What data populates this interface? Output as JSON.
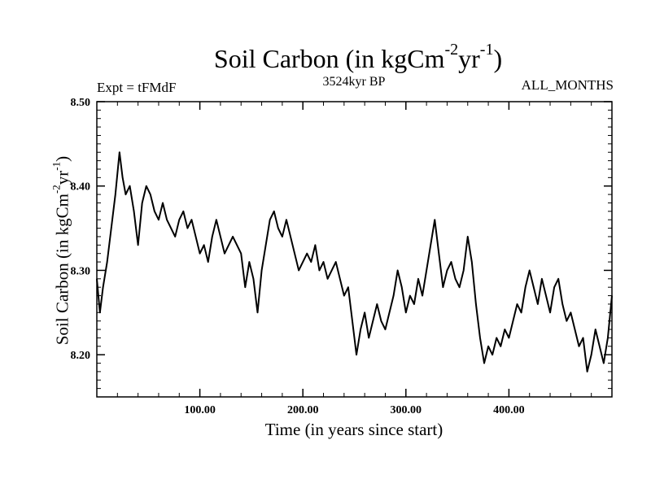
{
  "chart_data": {
    "type": "line",
    "title": {
      "main": "Soil Carbon (in kgCm",
      "sup1": "-2",
      "mid": "yr",
      "sup2": "-1",
      "end": ")"
    },
    "subtitle": "3524kyr BP",
    "left_label": "Expt = tFMdF",
    "right_label": "ALL_MONTHS",
    "xlabel": "Time (in years since start)",
    "ylabel": {
      "main": "Soil Carbon (in kgCm",
      "sup1": "-2",
      "mid": "yr",
      "sup2": "-1",
      "end": ")"
    },
    "xlim": [
      0,
      500
    ],
    "ylim": [
      8.15,
      8.5
    ],
    "xticks": [
      {
        "value": 100,
        "label": "100.00"
      },
      {
        "value": 200,
        "label": "200.00"
      },
      {
        "value": 300,
        "label": "300.00"
      },
      {
        "value": 400,
        "label": "400.00"
      }
    ],
    "yticks": [
      {
        "value": 8.2,
        "label": "8.20"
      },
      {
        "value": 8.3,
        "label": "8.30"
      },
      {
        "value": 8.4,
        "label": "8.40"
      },
      {
        "value": 8.5,
        "label": "8.50"
      }
    ],
    "series": [
      {
        "name": "Soil Carbon",
        "x": [
          0,
          3,
          6,
          10,
          14,
          18,
          22,
          25,
          28,
          32,
          36,
          40,
          44,
          48,
          52,
          56,
          60,
          64,
          68,
          72,
          76,
          80,
          84,
          88,
          92,
          96,
          100,
          104,
          108,
          112,
          116,
          120,
          124,
          128,
          132,
          136,
          140,
          144,
          148,
          152,
          156,
          160,
          164,
          168,
          172,
          176,
          180,
          184,
          188,
          192,
          196,
          200,
          204,
          208,
          212,
          216,
          220,
          224,
          228,
          232,
          236,
          240,
          244,
          248,
          252,
          256,
          260,
          264,
          268,
          272,
          276,
          280,
          284,
          288,
          292,
          296,
          300,
          304,
          308,
          312,
          316,
          320,
          324,
          328,
          332,
          336,
          340,
          344,
          348,
          352,
          356,
          360,
          364,
          368,
          372,
          376,
          380,
          384,
          388,
          392,
          396,
          400,
          404,
          408,
          412,
          416,
          420,
          424,
          428,
          432,
          436,
          440,
          444,
          448,
          452,
          456,
          460,
          464,
          468,
          472,
          476,
          480,
          484,
          488,
          492,
          496,
          500
        ],
        "values": [
          8.29,
          8.25,
          8.28,
          8.31,
          8.35,
          8.39,
          8.44,
          8.41,
          8.39,
          8.4,
          8.37,
          8.33,
          8.38,
          8.4,
          8.39,
          8.37,
          8.36,
          8.38,
          8.36,
          8.35,
          8.34,
          8.36,
          8.37,
          8.35,
          8.36,
          8.34,
          8.32,
          8.33,
          8.31,
          8.34,
          8.36,
          8.34,
          8.32,
          8.33,
          8.34,
          8.33,
          8.32,
          8.28,
          8.31,
          8.29,
          8.25,
          8.3,
          8.33,
          8.36,
          8.37,
          8.35,
          8.34,
          8.36,
          8.34,
          8.32,
          8.3,
          8.31,
          8.32,
          8.31,
          8.33,
          8.3,
          8.31,
          8.29,
          8.3,
          8.31,
          8.29,
          8.27,
          8.28,
          8.24,
          8.2,
          8.23,
          8.25,
          8.22,
          8.24,
          8.26,
          8.24,
          8.23,
          8.25,
          8.27,
          8.3,
          8.28,
          8.25,
          8.27,
          8.26,
          8.29,
          8.27,
          8.3,
          8.33,
          8.36,
          8.32,
          8.28,
          8.3,
          8.31,
          8.29,
          8.28,
          8.3,
          8.34,
          8.31,
          8.26,
          8.22,
          8.19,
          8.21,
          8.2,
          8.22,
          8.21,
          8.23,
          8.22,
          8.24,
          8.26,
          8.25,
          8.28,
          8.3,
          8.28,
          8.26,
          8.29,
          8.27,
          8.25,
          8.28,
          8.29,
          8.26,
          8.24,
          8.25,
          8.23,
          8.21,
          8.22,
          8.18,
          8.2,
          8.23,
          8.21,
          8.19,
          8.22,
          8.27
        ]
      }
    ]
  }
}
